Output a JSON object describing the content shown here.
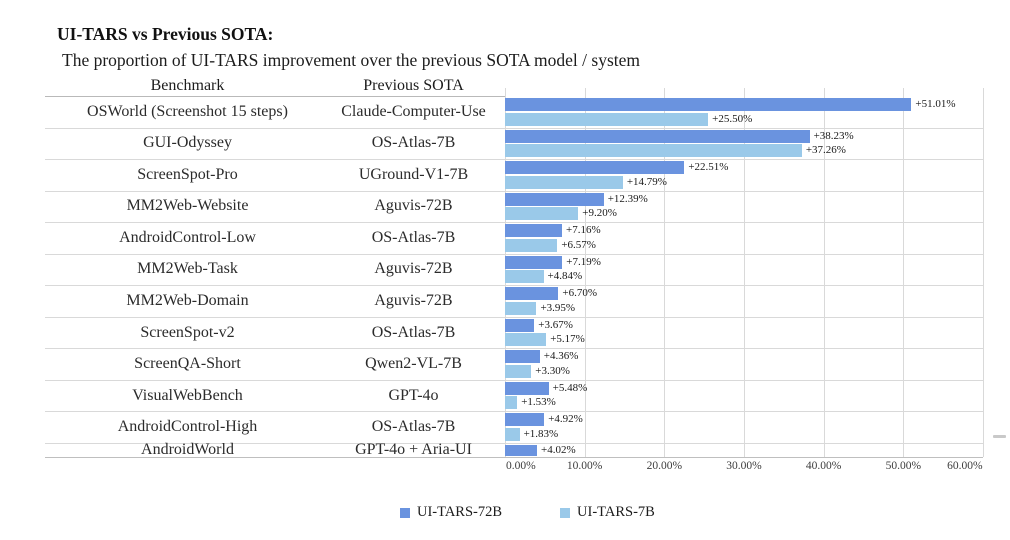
{
  "chart_data": {
    "type": "bar",
    "orientation": "horizontal",
    "title": "UI-TARS vs Previous SOTA:",
    "subtitle": "The proportion of UI-TARS improvement over the previous SOTA model / system",
    "categories": [
      "OSWorld (Screenshot 15 steps)",
      "GUI-Odyssey",
      "ScreenSpot-Pro",
      "MM2Web-Website",
      "AndroidControl-Low",
      "MM2Web-Task",
      "MM2Web-Domain",
      "ScreenSpot-v2",
      "ScreenQA-Short",
      "VisualWebBench",
      "AndroidControl-High",
      "AndroidWorld"
    ],
    "previous_sota": [
      "Claude-Computer-Use",
      "OS-Atlas-7B",
      "UGround-V1-7B",
      "Aguvis-72B",
      "OS-Atlas-7B",
      "Aguvis-72B",
      "Aguvis-72B",
      "OS-Atlas-7B",
      "Qwen2-VL-7B",
      "GPT-4o",
      "OS-Atlas-7B",
      "GPT-4o + Aria-UI"
    ],
    "series": [
      {
        "name": "UI-TARS-72B",
        "color": "#6A93DF",
        "values": [
          51.01,
          38.23,
          22.51,
          12.39,
          7.16,
          7.19,
          6.7,
          3.67,
          4.36,
          5.48,
          4.92,
          4.02
        ]
      },
      {
        "name": "UI-TARS-7B",
        "color": "#9AC9E9",
        "values": [
          25.5,
          37.26,
          14.79,
          9.2,
          6.57,
          4.84,
          3.95,
          5.17,
          3.3,
          1.53,
          1.83,
          null
        ]
      }
    ],
    "value_label_format": "+{value}%",
    "xlim": [
      0,
      60
    ],
    "x_tick_labels": [
      "0.00%",
      "10.00%",
      "20.00%",
      "30.00%",
      "40.00%",
      "50.00%",
      "60.00%"
    ],
    "grid": true,
    "legend_position": "bottom"
  },
  "table": {
    "benchmark_header": "Benchmark",
    "sota_header": "Previous SOTA"
  },
  "colors": {
    "series_72b": "#6A93DF",
    "series_7b": "#9AC9E9",
    "gridline": "#d9d9d9",
    "text": "#262626"
  }
}
